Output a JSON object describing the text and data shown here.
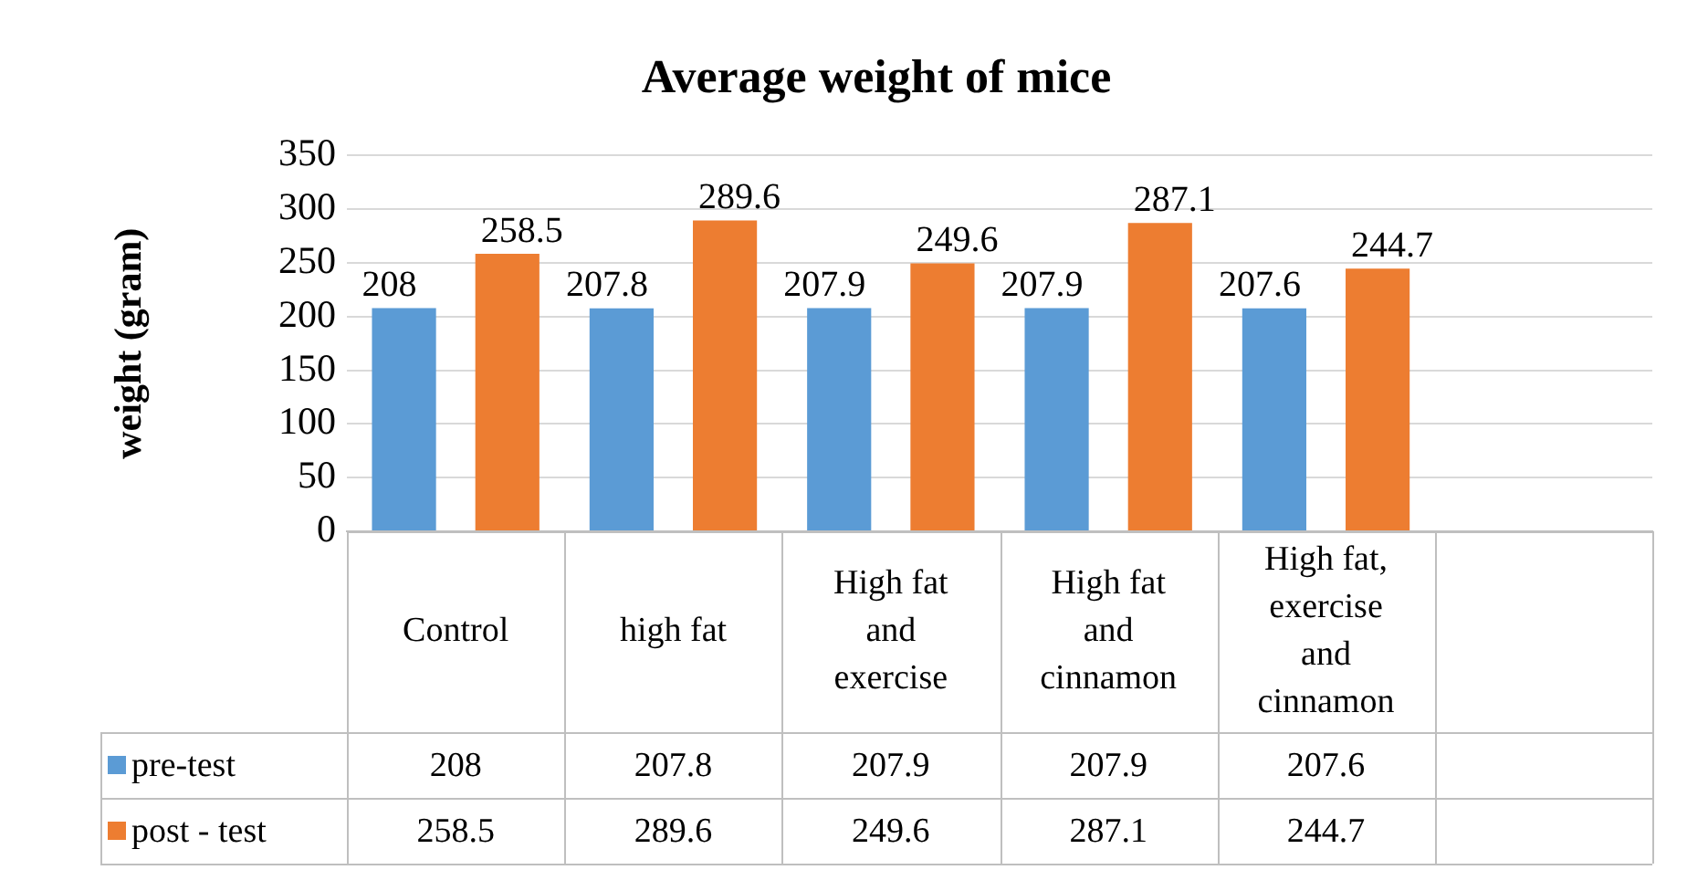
{
  "chart_data": {
    "type": "bar",
    "title": "Average weight of mice",
    "ylabel": "weight (gram)",
    "categories": [
      "Control",
      "high fat",
      "High fat and exercise",
      "High fat and cinnamon",
      "High fat, exercise and cinnamon",
      null
    ],
    "series": [
      {
        "name": "pre-test",
        "color": "#5b9bd5",
        "values": [
          208,
          207.8,
          207.9,
          207.9,
          207.6,
          null
        ]
      },
      {
        "name": "post - test",
        "color": "#ed7d31",
        "values": [
          258.5,
          289.6,
          249.6,
          287.1,
          244.7,
          null
        ]
      }
    ],
    "annotations": [
      "208",
      "207.8",
      "207.9",
      "207.9",
      "207.6",
      "258.5",
      "289.6",
      "249.6",
      "287.1",
      "244.7"
    ],
    "ylim": [
      0,
      350
    ],
    "yticks": [
      0,
      50,
      100,
      150,
      200,
      250,
      300,
      350
    ],
    "grid": "y",
    "data_labels": true,
    "legend": "bottom"
  }
}
